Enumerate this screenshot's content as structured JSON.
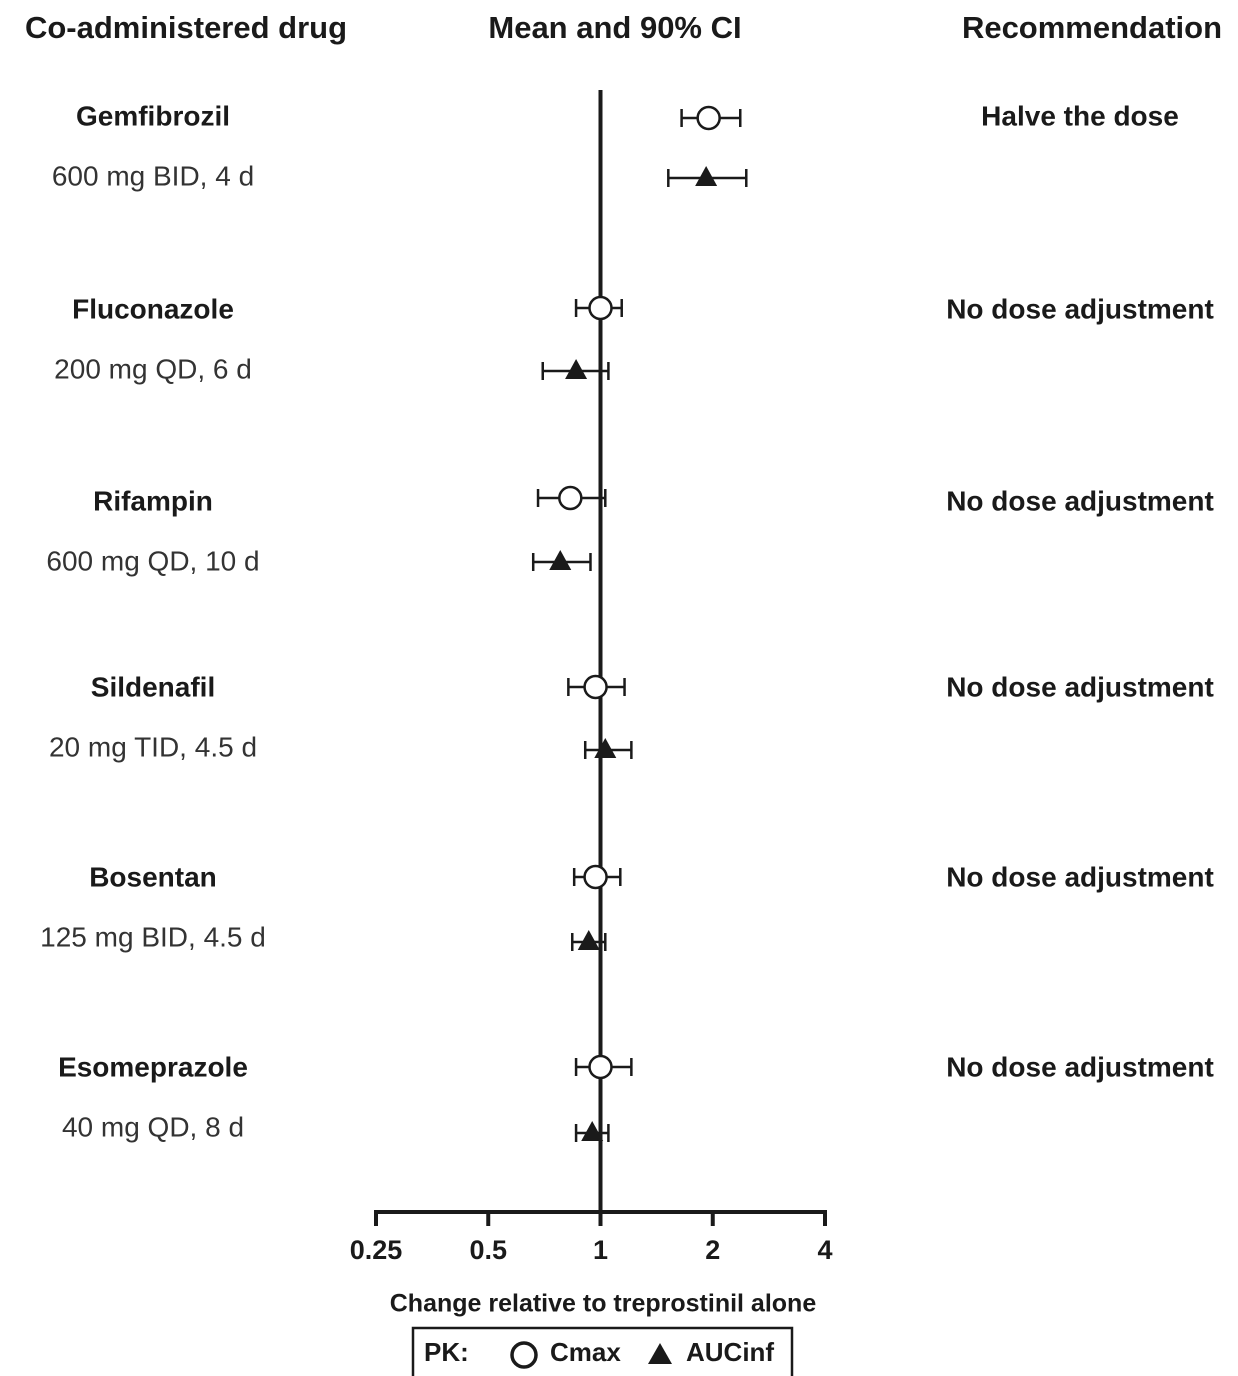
{
  "chart_data": {
    "type": "forest",
    "headers": [
      "Co-administered drug",
      "Mean and 90% CI",
      "Recommendation"
    ],
    "categories": [
      "Gemfibrozil",
      "Fluconazole",
      "Rifampin",
      "Sildenafil",
      "Bosentan",
      "Esomeprazole"
    ],
    "doses": [
      "600 mg BID, 4 d",
      "200 mg QD, 6 d",
      "600 mg QD, 10 d",
      "20 mg TID, 4.5 d",
      "125 mg BID, 4.5 d",
      "40 mg QD, 8 d"
    ],
    "recommendations": [
      "Halve the dose",
      "No dose adjustment",
      "No dose adjustment",
      "No dose adjustment",
      "No dose adjustment",
      "No dose adjustment"
    ],
    "series": [
      {
        "name": "Cmax",
        "marker": "circle",
        "color": "#1a1a1a",
        "values": [
          1.95,
          1.0,
          0.83,
          0.97,
          0.97,
          1.0
        ],
        "lower": [
          1.65,
          0.86,
          0.68,
          0.82,
          0.85,
          0.86
        ],
        "upper": [
          2.37,
          1.14,
          1.03,
          1.16,
          1.13,
          1.21
        ]
      },
      {
        "name": "AUCinf",
        "marker": "triangle",
        "color": "#1a1a1a",
        "values": [
          1.92,
          0.86,
          0.78,
          1.03,
          0.93,
          0.95
        ],
        "lower": [
          1.52,
          0.7,
          0.66,
          0.91,
          0.84,
          0.86
        ],
        "upper": [
          2.46,
          1.05,
          0.94,
          1.21,
          1.03,
          1.05
        ]
      }
    ],
    "xlim": [
      0.25,
      4
    ],
    "xticks": [
      0.25,
      0.5,
      1,
      2,
      4
    ],
    "xscale": "log",
    "reference_line": 1,
    "xlabel": "Change relative to treprostinil alone",
    "legend_title": "PK:"
  }
}
